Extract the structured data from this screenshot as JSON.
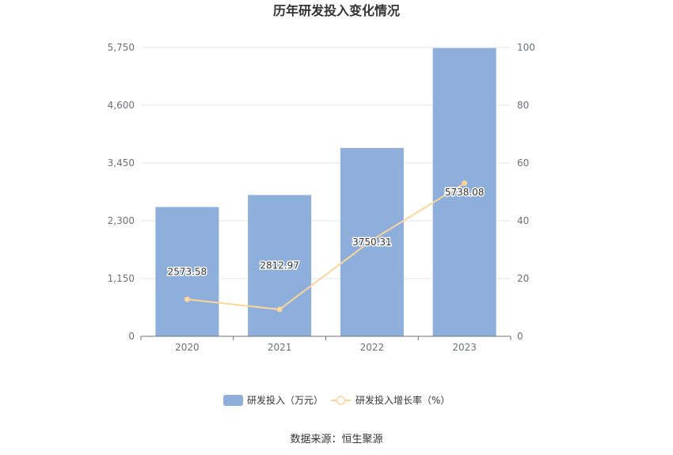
{
  "chart_data": {
    "type": "bar",
    "title": "历年研发投入变化情况",
    "categories": [
      "2020",
      "2021",
      "2022",
      "2023"
    ],
    "series": [
      {
        "name": "研发投入（万元）",
        "type": "bar",
        "axis": "left",
        "color": "#8eaedb",
        "values": [
          2573.58,
          2812.97,
          3750.31,
          5738.08
        ],
        "labels": [
          "2573.58",
          "2812.97",
          "3750.31",
          "5738.08"
        ]
      },
      {
        "name": "研发投入增长率（%）",
        "type": "line",
        "axis": "right",
        "color": "#fcd59a",
        "values": [
          12.8,
          9.3,
          33.3,
          53.0
        ]
      }
    ],
    "y_left": {
      "min": 0,
      "max": 5750,
      "ticks": [
        "0",
        "1,150",
        "2,300",
        "3,450",
        "4,600",
        "5,750"
      ]
    },
    "y_right": {
      "min": 0,
      "max": 100,
      "ticks": [
        "0",
        "20",
        "40",
        "60",
        "80",
        "100"
      ]
    },
    "grid": true,
    "legend_position": "bottom"
  },
  "source": "数据来源：恒生聚源"
}
